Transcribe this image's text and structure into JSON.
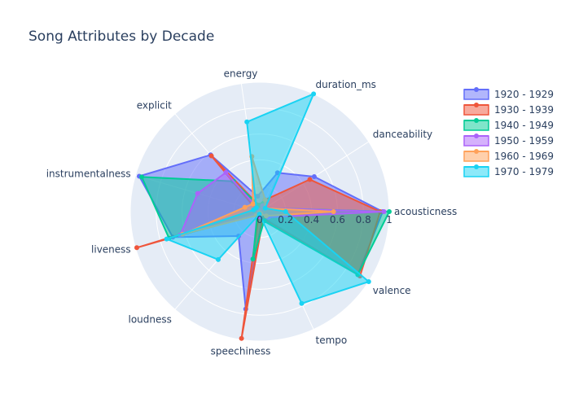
{
  "chart_data": {
    "type": "radar",
    "title": "Song Attributes by Decade",
    "axes": [
      "acousticness",
      "danceability",
      "duration_ms",
      "energy",
      "explicit",
      "instrumentalness",
      "liveness",
      "loudness",
      "speechiness",
      "tempo",
      "valence"
    ],
    "radial_ticks": [
      "0",
      "0.2",
      "0.4",
      "0.6",
      "0.8",
      "1"
    ],
    "radial_range": [
      0,
      1
    ],
    "legend_position": "top-right",
    "series": [
      {
        "name": "1920 - 1929",
        "color": "#636efa",
        "values": [
          0.95,
          0.5,
          0.33,
          0.12,
          0.58,
          0.97,
          0.7,
          0.25,
          0.76,
          0.05,
          0.9
        ]
      },
      {
        "name": "1930 - 1939",
        "color": "#ef553b",
        "values": [
          0.93,
          0.46,
          0.1,
          0.05,
          0.57,
          0.02,
          0.99,
          0.01,
          0.99,
          0.06,
          0.92
        ]
      },
      {
        "name": "1940 - 1949",
        "color": "#00cc96",
        "values": [
          1.0,
          0.05,
          0.1,
          0.05,
          0.31,
          0.95,
          0.73,
          0.03,
          0.37,
          0.08,
          0.9
        ]
      },
      {
        "name": "1950 - 1959",
        "color": "#ab63fa",
        "values": [
          0.96,
          0.05,
          0.05,
          0.01,
          0.4,
          0.5,
          0.64,
          0.02,
          0.04,
          0.01,
          0.08
        ]
      },
      {
        "name": "1960 - 1969",
        "color": "#ffa15a",
        "values": [
          0.57,
          0.05,
          0.1,
          0.43,
          0.08,
          0.12,
          0.62,
          0.04,
          0.01,
          0.02,
          0.06
        ]
      },
      {
        "name": "1970 - 1979",
        "color": "#19d3f3",
        "values": [
          0.2,
          0.05,
          1.0,
          0.7,
          0.04,
          0.05,
          0.75,
          0.49,
          0.02,
          0.78,
          1.0
        ]
      }
    ]
  }
}
